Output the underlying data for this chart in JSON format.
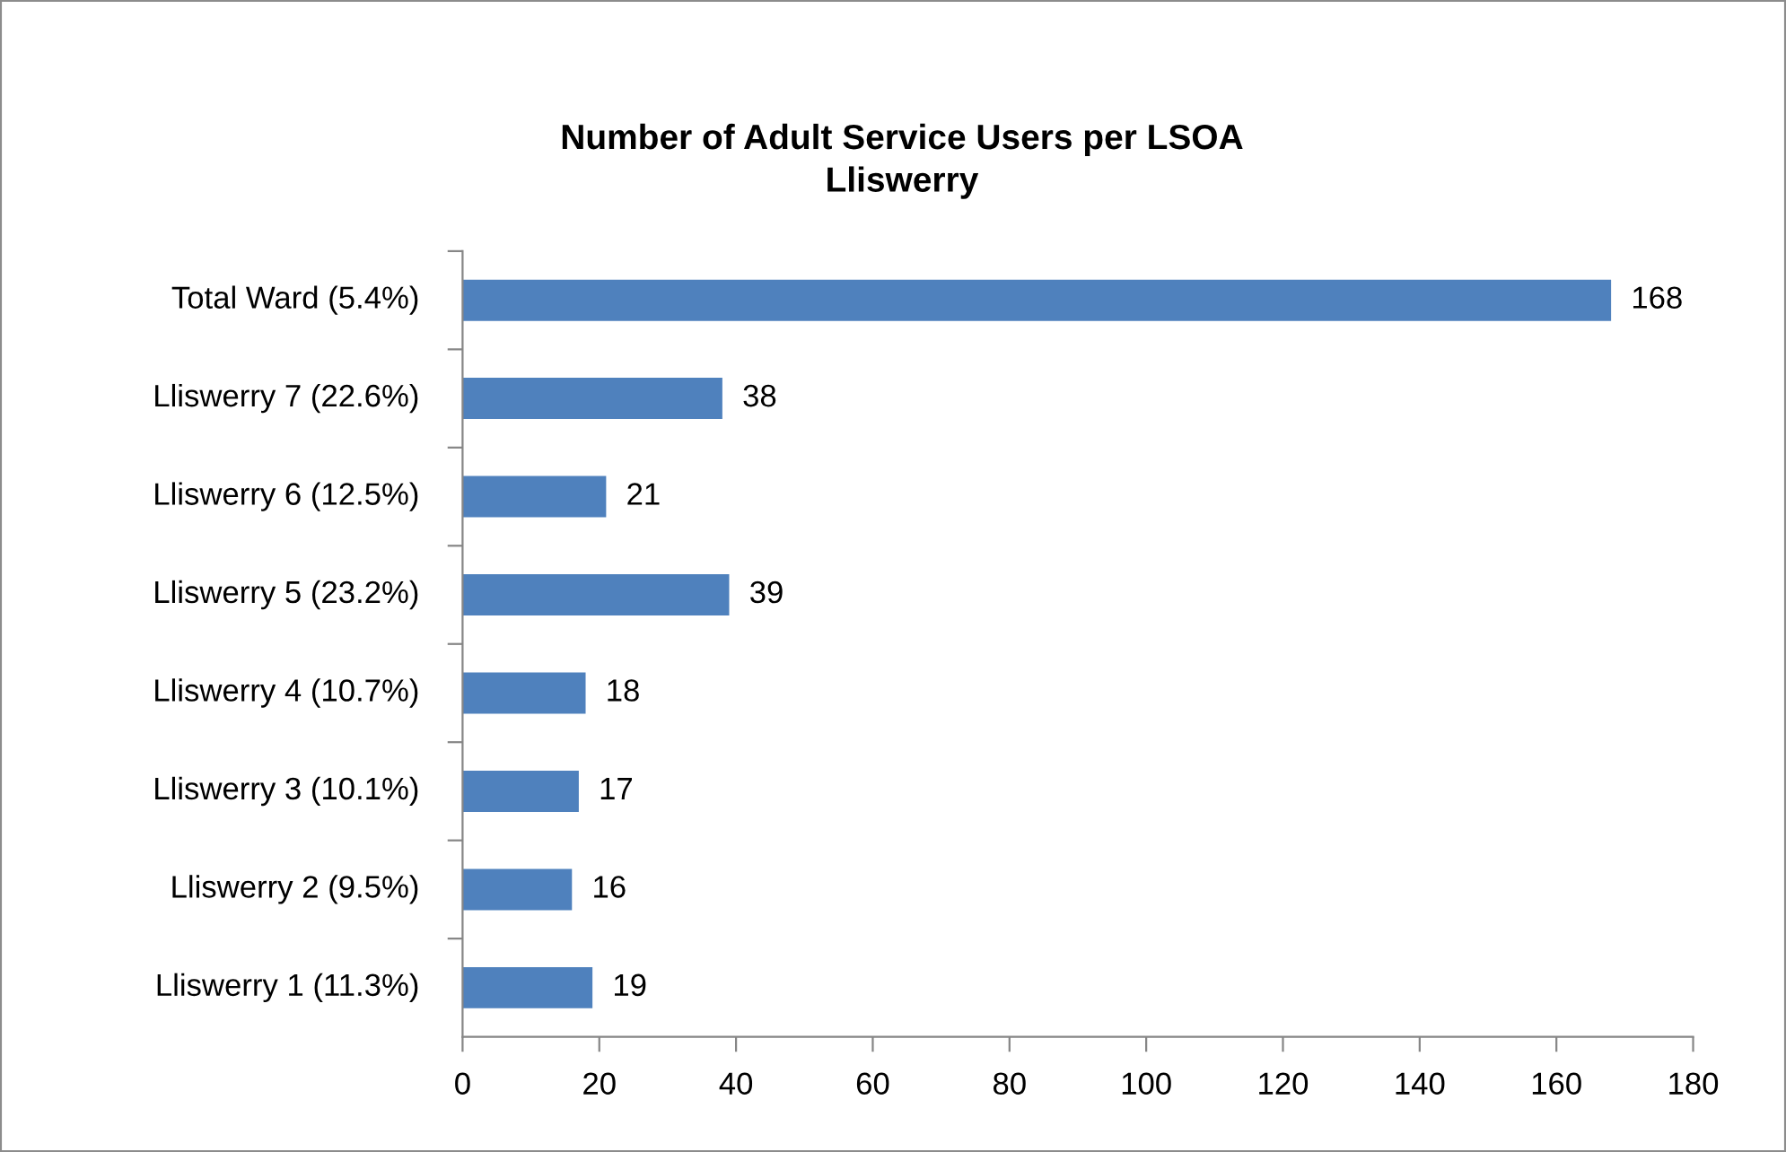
{
  "chart_data": {
    "type": "bar",
    "orientation": "horizontal",
    "title": "Number of Adult Service Users per LSOA\nLliswerry",
    "categories": [
      "Total Ward (5.4%)",
      "Lliswerry 7 (22.6%)",
      "Lliswerry 6 (12.5%)",
      "Lliswerry 5 (23.2%)",
      "Lliswerry 4 (10.7%)",
      "Lliswerry 3 (10.1%)",
      "Lliswerry 2 (9.5%)",
      "Lliswerry 1 (11.3%)"
    ],
    "values": [
      168,
      38,
      21,
      39,
      18,
      17,
      16,
      19
    ],
    "color": "#4f81bd",
    "xlim": [
      0,
      180
    ],
    "xticks": [
      0,
      20,
      40,
      60,
      80,
      100,
      120,
      140,
      160,
      180
    ],
    "data_labels": true,
    "grid": false,
    "legend": false
  }
}
